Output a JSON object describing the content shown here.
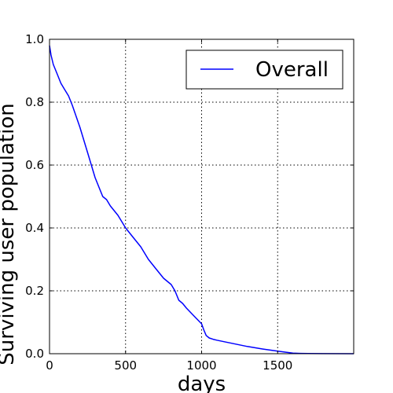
{
  "chart_data": {
    "type": "line",
    "xlabel": "days",
    "ylabel": "Surviving user population",
    "xlim": [
      0,
      2000
    ],
    "ylim": [
      0,
      1.0
    ],
    "xticks": [
      0,
      500,
      1000,
      1500
    ],
    "xtick_labels": [
      "0",
      "500",
      "1000",
      "1500"
    ],
    "yticks": [
      0.0,
      0.2,
      0.4,
      0.6,
      0.8,
      1.0
    ],
    "ytick_labels": [
      "0.0",
      "0.2",
      "0.4",
      "0.6",
      "0.8",
      "1.0"
    ],
    "grid": true,
    "legend_position": "top-right",
    "series": [
      {
        "name": "Overall",
        "color": "#0000ff",
        "x": [
          0,
          10,
          25,
          50,
          75,
          100,
          125,
          150,
          200,
          250,
          300,
          350,
          375,
          400,
          450,
          500,
          550,
          600,
          650,
          700,
          750,
          800,
          825,
          850,
          875,
          900,
          950,
          1000,
          1015,
          1030,
          1050,
          1075,
          1100,
          1150,
          1200,
          1300,
          1400,
          1500,
          1550,
          1600,
          1650,
          1700,
          1800,
          2000
        ],
        "y": [
          0.98,
          0.95,
          0.92,
          0.89,
          0.86,
          0.84,
          0.82,
          0.79,
          0.72,
          0.64,
          0.56,
          0.5,
          0.49,
          0.47,
          0.44,
          0.4,
          0.37,
          0.34,
          0.3,
          0.27,
          0.24,
          0.22,
          0.2,
          0.17,
          0.16,
          0.145,
          0.12,
          0.095,
          0.075,
          0.058,
          0.05,
          0.046,
          0.043,
          0.038,
          0.033,
          0.023,
          0.015,
          0.008,
          0.005,
          0.002,
          0.001,
          0.0005,
          0.0003,
          0.0
        ]
      }
    ]
  }
}
